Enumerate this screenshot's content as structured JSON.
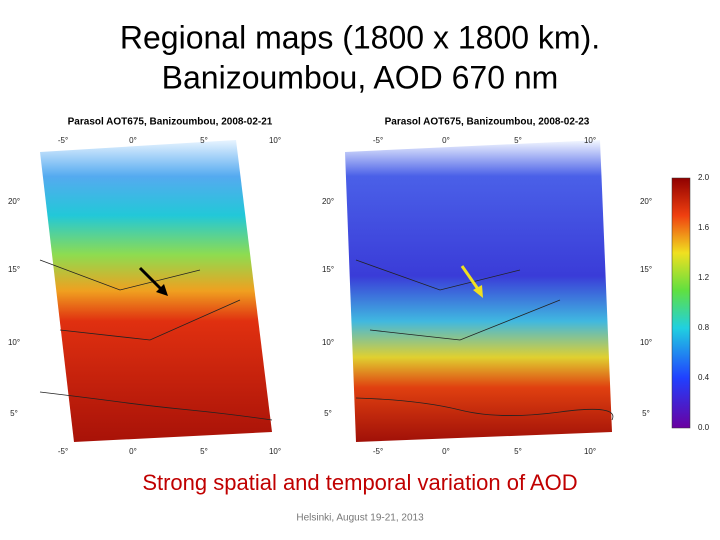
{
  "title": [
    "Regional maps (1800 x 1800 km).",
    "Banizoumbou, AOD 670 nm"
  ],
  "maps": [
    {
      "title": "Parasol AOT675, Banizoumbou, 2008-02-21",
      "lon_labels": [
        "-5°",
        "0°",
        "5°",
        "10°"
      ],
      "lat_labels": [
        "20°",
        "15°",
        "10°",
        "5°"
      ]
    },
    {
      "title": "Parasol AOT675, Banizoumbou, 2008-02-23",
      "lon_labels": [
        "-5°",
        "0°",
        "5°",
        "10°"
      ],
      "lat_labels": [
        "20°",
        "15°",
        "10°",
        "5°"
      ]
    }
  ],
  "colorbar": {
    "labels": [
      "2.0",
      "1.6",
      "1.2",
      "0.8",
      "0.4",
      "0.0"
    ]
  },
  "caption": "Strong spatial and temporal variation of AOD",
  "footer": "Helsinki, August 19-21, 2013"
}
